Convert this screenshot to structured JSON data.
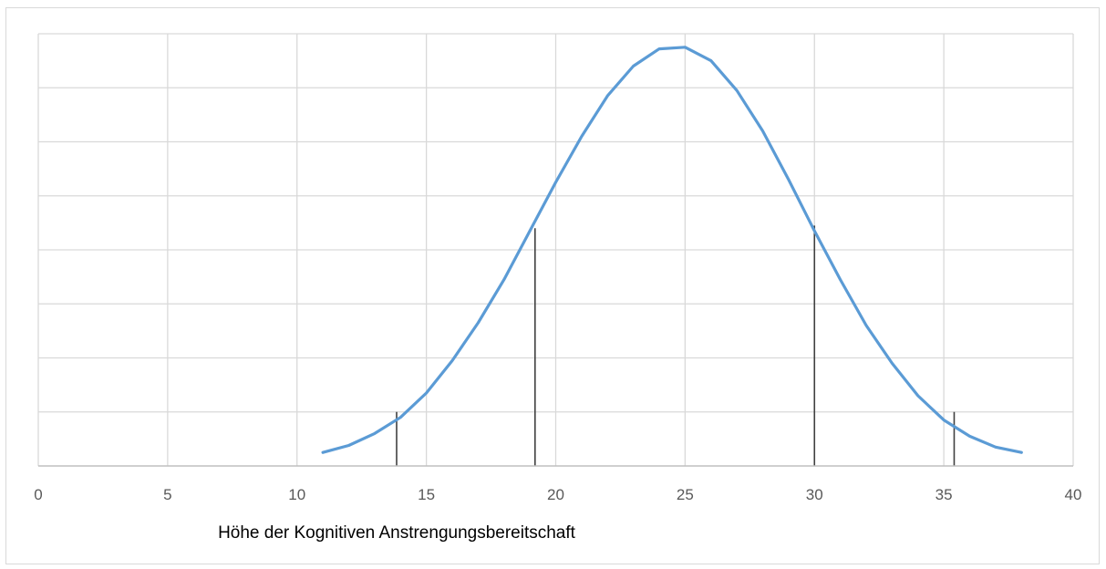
{
  "chart_data": {
    "type": "line",
    "title": "",
    "xlabel": "Höhe der Kognitiven Anstrengungsbereitschaft",
    "ylabel": "",
    "xlim": [
      0,
      40
    ],
    "ylim": [
      0,
      8
    ],
    "x_ticks": [
      0,
      5,
      10,
      15,
      20,
      25,
      30,
      35,
      40
    ],
    "y_tick_labels_shown": false,
    "grid": true,
    "legend": "none",
    "series": [
      {
        "color": "#5b9bd5",
        "x": [
          11,
          12,
          13,
          14,
          15,
          16,
          17,
          18,
          19,
          20,
          21,
          22,
          23,
          24,
          25,
          26,
          27,
          28,
          29,
          30,
          31,
          32,
          33,
          34,
          35,
          36,
          37,
          38
        ],
        "y": [
          0.25,
          0.38,
          0.6,
          0.9,
          1.35,
          1.95,
          2.65,
          3.45,
          4.35,
          5.25,
          6.1,
          6.85,
          7.4,
          7.72,
          7.75,
          7.5,
          6.95,
          6.2,
          5.3,
          4.35,
          3.45,
          2.6,
          1.9,
          1.3,
          0.85,
          0.55,
          0.35,
          0.25
        ]
      }
    ],
    "vertical_markers": [
      {
        "x": 13.85,
        "y": 1.0,
        "color": "#404040"
      },
      {
        "x": 19.2,
        "y": 4.4,
        "color": "#404040"
      },
      {
        "x": 30.0,
        "y": 4.45,
        "color": "#404040"
      },
      {
        "x": 35.4,
        "y": 1.0,
        "color": "#404040"
      }
    ]
  }
}
